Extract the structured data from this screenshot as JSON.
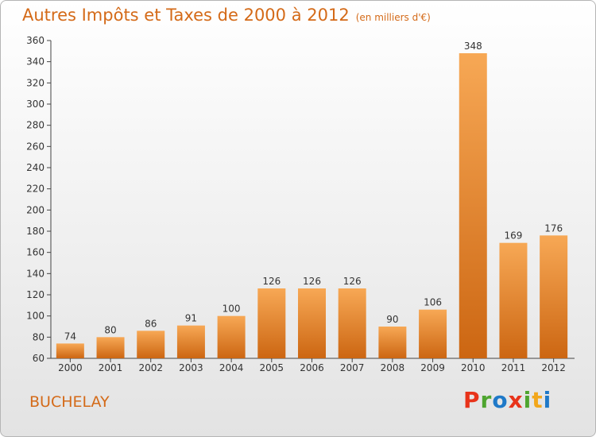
{
  "header": {
    "title": "Autres Impôts et Taxes de 2000 à 2012",
    "subtitle": "(en milliers d'€)"
  },
  "footer": {
    "town": "BUCHELAY",
    "logo": "Proxiti"
  },
  "colors": {
    "accent": "#d46a18",
    "bar_light": "#f7a855",
    "bar_dark": "#cc6612",
    "logo_letters": [
      "#e8331a",
      "#4ea52f",
      "#1f79c8",
      "#e8331a",
      "#4ea52f",
      "#f2a71c",
      "#1f79c8"
    ]
  },
  "chart_data": {
    "type": "bar",
    "title": "Autres Impôts et Taxes de 2000 à 2012",
    "xlabel": "",
    "ylabel": "",
    "categories": [
      "2000",
      "2001",
      "2002",
      "2003",
      "2004",
      "2005",
      "2006",
      "2007",
      "2008",
      "2009",
      "2010",
      "2011",
      "2012"
    ],
    "values": [
      74,
      80,
      86,
      91,
      100,
      126,
      126,
      126,
      90,
      106,
      348,
      169,
      176
    ],
    "ylim": [
      60,
      360
    ],
    "yticks": [
      60,
      80,
      100,
      120,
      140,
      160,
      180,
      200,
      220,
      240,
      260,
      280,
      300,
      320,
      340,
      360
    ],
    "grid": false,
    "legend": "none"
  }
}
